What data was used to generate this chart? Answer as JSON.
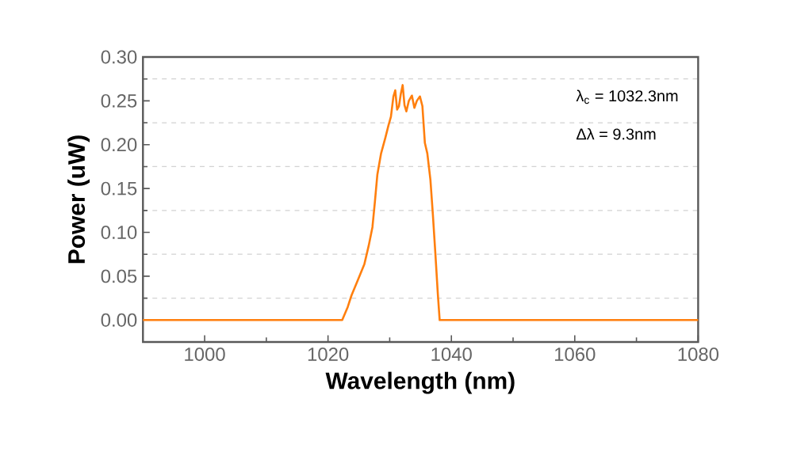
{
  "chart_data": {
    "type": "line",
    "xlabel": "Wavelength (nm)",
    "ylabel": "Power (uW)",
    "xlim": [
      990,
      1080
    ],
    "ylim": [
      -0.025,
      0.3
    ],
    "xticks": [
      1000,
      1020,
      1040,
      1060,
      1080
    ],
    "yticks": [
      {
        "value": 0,
        "label": "0.00"
      },
      {
        "value": 0.05,
        "label": "0.05"
      },
      {
        "value": 0.1,
        "label": "0.10"
      },
      {
        "value": 0.15,
        "label": "0.15"
      },
      {
        "value": 0.2,
        "label": "0.20"
      },
      {
        "value": 0.25,
        "label": "0.25"
      },
      {
        "value": 0.3,
        "label": "0.30"
      }
    ],
    "grid": "y",
    "line_style": "solid",
    "annotations": [
      "λ$_{c}$ = 1032.3nm",
      "Δλ = 9.3nm"
    ],
    "series": [
      {
        "color": "#ff7f0e",
        "x": [
          990,
          1022.3,
          1023.2,
          1023.8,
          1024.8,
          1025.9,
          1026.6,
          1027.2,
          1027.6,
          1028.0,
          1028.6,
          1029.3,
          1029.8,
          1030.2,
          1030.6,
          1030.9,
          1031.2,
          1031.5,
          1031.8,
          1032.1,
          1032.4,
          1032.7,
          1033.1,
          1033.6,
          1034.0,
          1034.4,
          1034.9,
          1035.3,
          1035.7,
          1036.1,
          1036.6,
          1037.0,
          1037.4,
          1037.8,
          1038.1,
          1080
        ],
        "values": [
          0,
          0,
          0.015,
          0.028,
          0.045,
          0.064,
          0.085,
          0.106,
          0.135,
          0.166,
          0.19,
          0.208,
          0.222,
          0.232,
          0.255,
          0.262,
          0.24,
          0.244,
          0.258,
          0.268,
          0.245,
          0.238,
          0.25,
          0.256,
          0.242,
          0.25,
          0.255,
          0.244,
          0.202,
          0.19,
          0.16,
          0.12,
          0.076,
          0.03,
          0,
          0
        ]
      }
    ]
  }
}
